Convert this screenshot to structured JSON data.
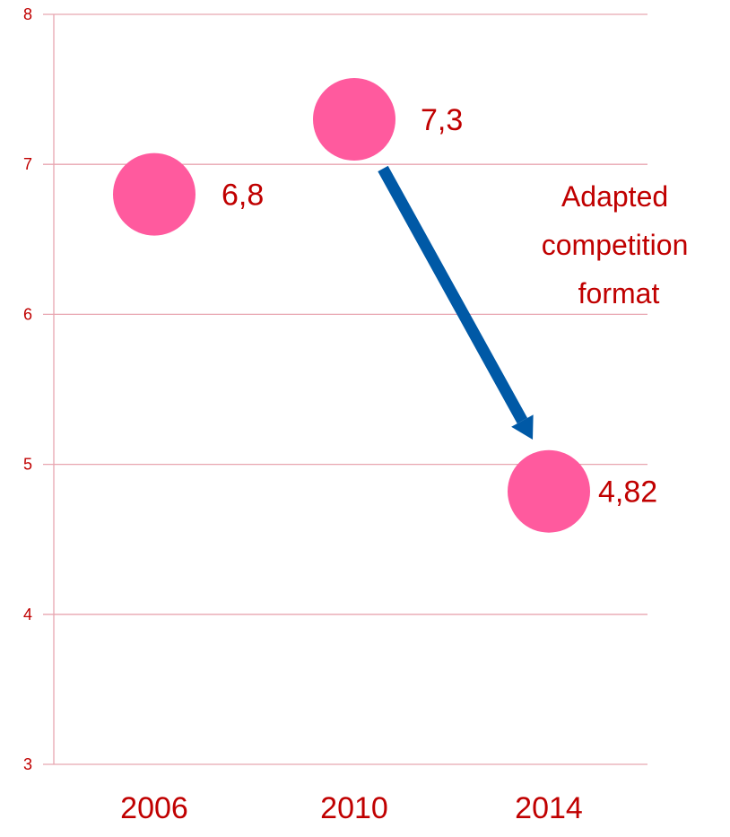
{
  "colors": {
    "grid": "#E8A6B0",
    "axis": "#E8A6B0",
    "text": "#C00000",
    "marker": "#FF5A9E",
    "arrow": "#0059A6",
    "background": "#FFFFFF"
  },
  "chart_data": {
    "type": "scatter",
    "categories": [
      "2006",
      "2010",
      "2014"
    ],
    "values": [
      6.8,
      7.3,
      4.82
    ],
    "data_labels": [
      "6,8",
      "7,3",
      "4,82"
    ],
    "yticks": [
      "3",
      "4",
      "5",
      "6",
      "7",
      "8"
    ],
    "ylim": [
      3,
      8
    ],
    "grid": true,
    "annotation": {
      "lines": [
        "Adapted",
        "competition",
        "format"
      ],
      "arrow_from": "2010",
      "arrow_to": "2014"
    }
  }
}
